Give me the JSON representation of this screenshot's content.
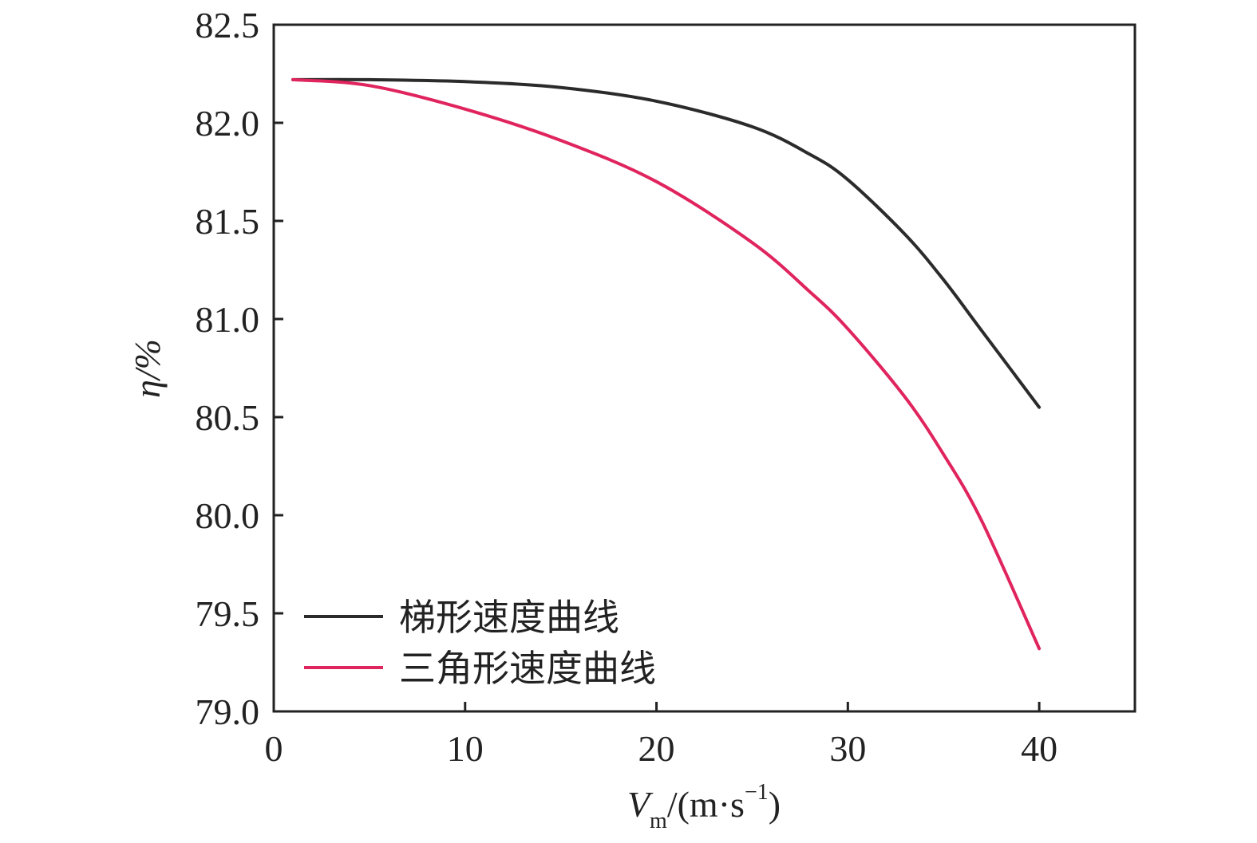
{
  "chart_data": {
    "type": "line",
    "title": "",
    "xlabel": {
      "var": "V",
      "sub": "m",
      "unit": "/(m·s",
      "sup": "−1",
      "close": ")"
    },
    "ylabel": {
      "var": "η",
      "unit": "/%"
    },
    "xlim": [
      0,
      45
    ],
    "ylim": [
      79.0,
      82.5
    ],
    "xticks": [
      0,
      10,
      20,
      30,
      40
    ],
    "xtick_labels": [
      "0",
      "10",
      "20",
      "30",
      "40"
    ],
    "yticks": [
      79.0,
      79.5,
      80.0,
      80.5,
      81.0,
      81.5,
      82.0,
      82.5
    ],
    "ytick_labels": [
      "79.0",
      "79.5",
      "80.0",
      "80.5",
      "81.0",
      "81.5",
      "82.0",
      "82.5"
    ],
    "grid": false,
    "legend_position": "bottom-left",
    "series": [
      {
        "name": "梯形速度曲线",
        "color": "#2b2b2b",
        "x": [
          1,
          5,
          10,
          15,
          20,
          25,
          28,
          30,
          33,
          35,
          37,
          40
        ],
        "y": [
          82.22,
          82.22,
          82.21,
          82.18,
          82.11,
          81.98,
          81.84,
          81.71,
          81.43,
          81.2,
          80.94,
          80.55
        ]
      },
      {
        "name": "三角形速度曲线",
        "color": "#e0245e",
        "x": [
          1,
          5,
          10,
          15,
          20,
          25,
          28,
          30,
          33,
          35,
          37,
          40
        ],
        "y": [
          82.22,
          82.19,
          82.07,
          81.91,
          81.7,
          81.39,
          81.14,
          80.95,
          80.6,
          80.31,
          79.97,
          79.32
        ]
      }
    ]
  }
}
